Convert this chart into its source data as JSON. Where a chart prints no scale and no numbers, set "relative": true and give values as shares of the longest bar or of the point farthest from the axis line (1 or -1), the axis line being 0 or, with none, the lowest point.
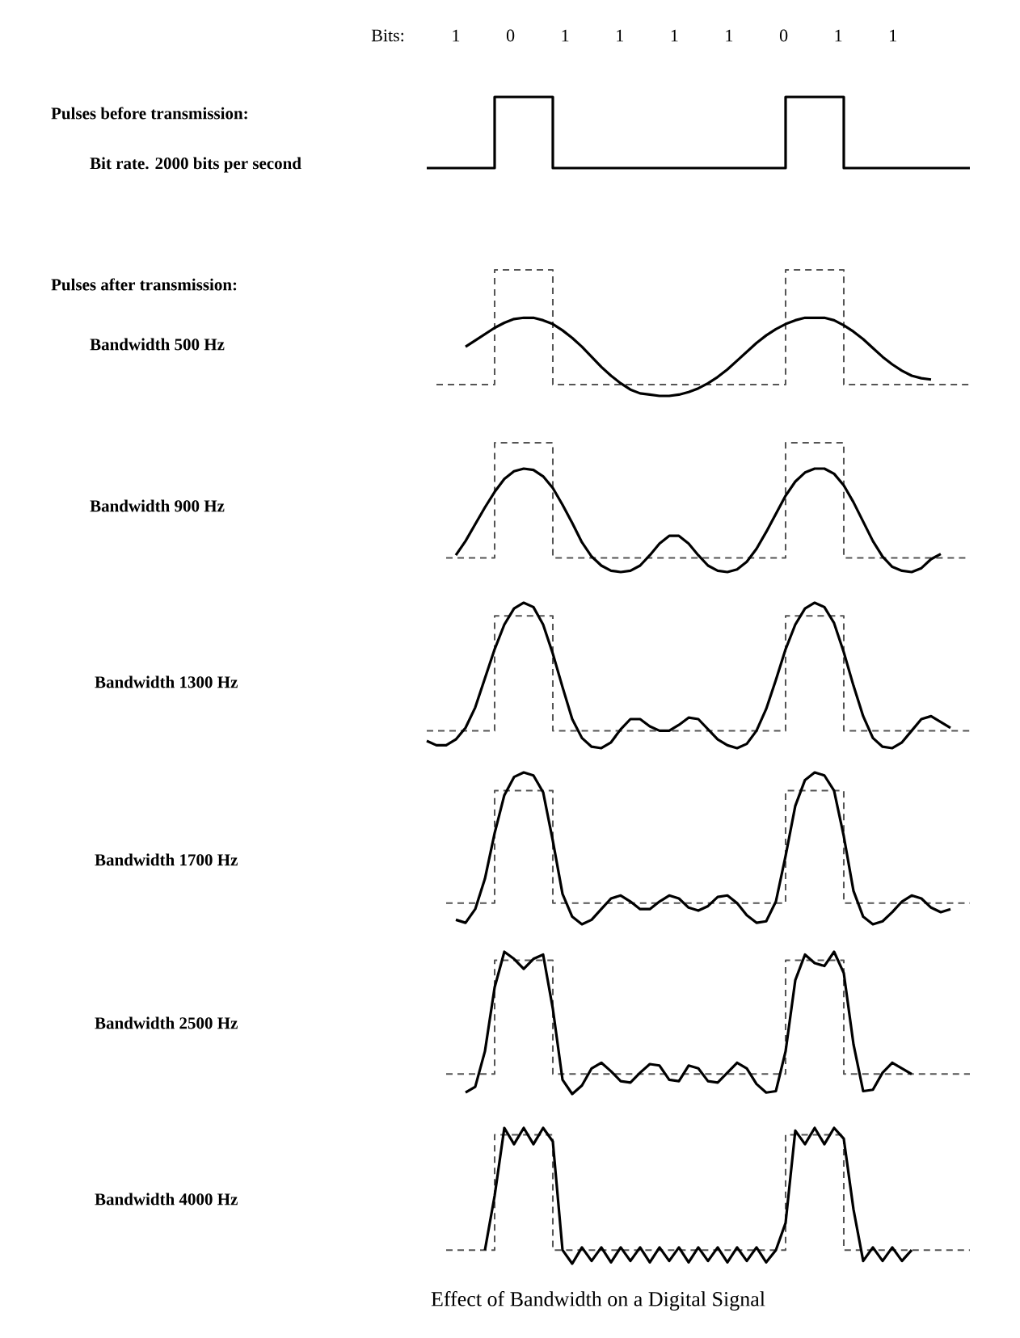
{
  "chart_data": [
    {
      "type": "step",
      "ylabel": "Bit rate. 2000 bits per second",
      "xlabel": "Bits:",
      "annotations": [
        "1",
        "0",
        "1",
        "1",
        "1",
        "1",
        "0",
        "1",
        "1",
        "Pulses before transmission:"
      ],
      "categories": [
        null,
        null,
        null,
        null,
        null,
        null,
        null,
        null,
        null,
        null,
        null,
        null,
        null,
        null,
        null,
        null,
        null,
        null,
        null,
        null,
        null,
        null,
        null,
        null,
        null,
        null,
        null,
        null,
        null,
        null,
        null,
        null,
        null,
        null,
        null,
        null,
        null,
        null,
        null,
        null,
        null,
        null,
        null,
        null,
        null,
        null,
        null,
        null,
        null,
        null,
        null,
        null,
        null,
        null,
        null,
        null,
        null,
        null
      ],
      "relative": true,
      "color": "#000000",
      "values": [
        null,
        0,
        0,
        0,
        0,
        0,
        0,
        0,
        1,
        1,
        1,
        1,
        1,
        1,
        0,
        0,
        0,
        0,
        0,
        0,
        0,
        0,
        0,
        0,
        0,
        0,
        0,
        0,
        0,
        0,
        0,
        0,
        0,
        0,
        0,
        0,
        0,
        0,
        1,
        1,
        1,
        1,
        1,
        1,
        0,
        0,
        0,
        0,
        0,
        0,
        0,
        0,
        0,
        0,
        0,
        0,
        0,
        0
      ]
    },
    {
      "type": "line",
      "annotations": [
        "Pulses after transmission:"
      ],
      "ylabel": "Bandwidth 500 Hz",
      "relative": true,
      "categories": [
        null,
        null,
        null,
        null,
        null,
        null,
        null,
        null,
        null,
        null,
        null,
        null,
        null,
        null,
        null,
        null,
        null,
        null,
        null,
        null,
        null,
        null,
        null,
        null,
        null,
        null,
        null,
        null,
        null,
        null,
        null,
        null,
        null,
        null,
        null,
        null,
        null,
        null,
        null,
        null,
        null,
        null,
        null,
        null,
        null,
        null,
        null,
        null,
        null,
        null,
        null,
        null,
        null,
        null,
        null,
        null,
        null,
        null
      ],
      "series": [
        {
          "type": "step",
          "line_style": "dashed",
          "color": "#555555",
          "values": [
            null,
            null,
            0.09,
            0.09,
            0.09,
            0.09,
            0.09,
            0.09,
            1,
            1,
            1,
            1,
            1,
            1,
            0.09,
            0.09,
            0.09,
            0.09,
            0.09,
            0.09,
            0.09,
            0.09,
            0.09,
            0.09,
            0.09,
            0.09,
            0.09,
            0.09,
            0.09,
            0.09,
            0.09,
            0.09,
            0.09,
            0.09,
            0.09,
            0.09,
            0.09,
            0.09,
            1,
            1,
            1,
            1,
            1,
            1,
            0.09,
            0.09,
            0.09,
            0.09,
            0.09,
            0.09,
            0.09,
            0.09,
            0.09,
            0.09,
            0.09,
            0.09,
            0.09,
            0.09
          ]
        },
        {
          "type": "line",
          "line_style": "solid",
          "color": "#000000",
          "values": [
            null,
            null,
            null,
            null,
            null,
            0.39,
            0.44,
            0.49,
            0.54,
            0.58,
            0.61,
            0.62,
            0.62,
            0.6,
            0.57,
            0.52,
            0.46,
            0.39,
            0.31,
            0.23,
            0.16,
            0.1,
            0.05,
            0.02,
            0.01,
            0,
            0,
            0.01,
            0.03,
            0.06,
            0.1,
            0.15,
            0.21,
            0.28,
            0.35,
            0.42,
            0.48,
            0.53,
            0.57,
            0.6,
            0.62,
            0.62,
            0.62,
            0.6,
            0.56,
            0.51,
            0.45,
            0.38,
            0.31,
            0.25,
            0.2,
            0.16,
            0.14,
            0.13,
            null,
            null,
            null,
            null
          ]
        }
      ]
    },
    {
      "type": "line",
      "ylabel": "Bandwidth 900 Hz",
      "relative": true,
      "categories": [
        null,
        null,
        null,
        null,
        null,
        null,
        null,
        null,
        null,
        null,
        null,
        null,
        null,
        null,
        null,
        null,
        null,
        null,
        null,
        null,
        null,
        null,
        null,
        null,
        null,
        null,
        null,
        null,
        null,
        null,
        null,
        null,
        null,
        null,
        null,
        null,
        null,
        null,
        null,
        null,
        null,
        null,
        null,
        null,
        null,
        null,
        null,
        null,
        null,
        null,
        null,
        null,
        null,
        null,
        null,
        null,
        null,
        null
      ],
      "series": [
        {
          "type": "step",
          "line_style": "dashed",
          "color": "#555555",
          "values": [
            null,
            null,
            null,
            0.11,
            0.11,
            0.11,
            0.11,
            0.11,
            1,
            1,
            1,
            1,
            1,
            1,
            0.11,
            0.11,
            0.11,
            0.11,
            0.11,
            0.11,
            0.11,
            0.11,
            0.11,
            0.11,
            0.11,
            0.11,
            0.11,
            0.11,
            0.11,
            0.11,
            0.11,
            0.11,
            0.11,
            0.11,
            0.11,
            0.11,
            0.11,
            0.11,
            1,
            1,
            1,
            1,
            1,
            1,
            0.11,
            0.11,
            0.11,
            0.11,
            0.11,
            0.11,
            0.11,
            0.11,
            0.11,
            0.11,
            0.11,
            0.11,
            0.11,
            0.11
          ]
        },
        {
          "type": "line",
          "line_style": "solid",
          "color": "#000000",
          "values": [
            null,
            null,
            null,
            null,
            0.13,
            0.24,
            0.37,
            0.5,
            0.62,
            0.72,
            0.78,
            0.8,
            0.79,
            0.74,
            0.65,
            0.52,
            0.38,
            0.23,
            0.12,
            0.05,
            0.01,
            0,
            0.01,
            0.05,
            0.13,
            0.22,
            0.28,
            0.28,
            0.22,
            0.13,
            0.05,
            0.01,
            0,
            0.02,
            0.08,
            0.18,
            0.31,
            0.45,
            0.59,
            0.7,
            0.77,
            0.8,
            0.8,
            0.76,
            0.67,
            0.54,
            0.39,
            0.24,
            0.12,
            0.04,
            0.01,
            0,
            0.03,
            0.1,
            0.14,
            null,
            null,
            null
          ]
        }
      ]
    },
    {
      "type": "line",
      "ylabel": "Bandwidth 1300 Hz",
      "relative": true,
      "categories": [
        null,
        null,
        null,
        null,
        null,
        null,
        null,
        null,
        null,
        null,
        null,
        null,
        null,
        null,
        null,
        null,
        null,
        null,
        null,
        null,
        null,
        null,
        null,
        null,
        null,
        null,
        null,
        null,
        null,
        null,
        null,
        null,
        null,
        null,
        null,
        null,
        null,
        null,
        null,
        null,
        null,
        null,
        null,
        null,
        null,
        null,
        null,
        null,
        null,
        null,
        null,
        null,
        null,
        null,
        null,
        null,
        null,
        null
      ],
      "series": [
        {
          "type": "step",
          "line_style": "dashed",
          "color": "#555555",
          "values": [
            null,
            0.12,
            0.12,
            0.12,
            0.12,
            0.12,
            0.12,
            0.12,
            0.91,
            0.91,
            0.91,
            0.91,
            0.91,
            0.91,
            0.12,
            0.12,
            0.12,
            0.12,
            0.12,
            0.12,
            0.12,
            0.12,
            0.12,
            0.12,
            0.12,
            0.12,
            0.12,
            0.12,
            0.12,
            0.12,
            0.12,
            0.12,
            0.12,
            0.12,
            0.12,
            0.12,
            0.12,
            0.12,
            0.91,
            0.91,
            0.91,
            0.91,
            0.91,
            0.91,
            0.12,
            0.12,
            0.12,
            0.12,
            0.12,
            0.12,
            0.12,
            0.12,
            0.12,
            0.12,
            0.12,
            0.12,
            0.12,
            0.12
          ]
        },
        {
          "type": "line",
          "line_style": "solid",
          "color": "#000000",
          "values": [
            null,
            0.05,
            0.02,
            0.02,
            0.06,
            0.14,
            0.28,
            0.48,
            0.68,
            0.85,
            0.96,
            1,
            0.97,
            0.85,
            0.65,
            0.42,
            0.2,
            0.07,
            0.01,
            0,
            0.04,
            0.13,
            0.2,
            0.2,
            0.15,
            0.12,
            0.12,
            0.16,
            0.21,
            0.2,
            0.13,
            0.06,
            0.02,
            0,
            0.03,
            0.12,
            0.27,
            0.47,
            0.68,
            0.85,
            0.96,
            1,
            0.97,
            0.86,
            0.66,
            0.43,
            0.22,
            0.07,
            0.01,
            0,
            0.04,
            0.12,
            0.2,
            0.22,
            0.18,
            0.14,
            null,
            null
          ]
        }
      ]
    },
    {
      "type": "line",
      "ylabel": "Bandwidth 1700 Hz",
      "relative": true,
      "categories": [
        null,
        null,
        null,
        null,
        null,
        null,
        null,
        null,
        null,
        null,
        null,
        null,
        null,
        null,
        null,
        null,
        null,
        null,
        null,
        null,
        null,
        null,
        null,
        null,
        null,
        null,
        null,
        null,
        null,
        null,
        null,
        null,
        null,
        null,
        null,
        null,
        null,
        null,
        null,
        null,
        null,
        null,
        null,
        null,
        null,
        null,
        null,
        null,
        null,
        null,
        null,
        null,
        null,
        null,
        null,
        null,
        null,
        null
      ],
      "series": [
        {
          "type": "step",
          "line_style": "dashed",
          "color": "#555555",
          "values": [
            null,
            null,
            null,
            0.14,
            0.14,
            0.14,
            0.14,
            0.14,
            0.88,
            0.88,
            0.88,
            0.88,
            0.88,
            0.88,
            0.14,
            0.14,
            0.14,
            0.14,
            0.14,
            0.14,
            0.14,
            0.14,
            0.14,
            0.14,
            0.14,
            0.14,
            0.14,
            0.14,
            0.14,
            0.14,
            0.14,
            0.14,
            0.14,
            0.14,
            0.14,
            0.14,
            0.14,
            0.14,
            0.88,
            0.88,
            0.88,
            0.88,
            0.88,
            0.88,
            0.14,
            0.14,
            0.14,
            0.14,
            0.14,
            0.14,
            0.14,
            0.14,
            0.14,
            0.14,
            0.14,
            0.14,
            0.14,
            0.14
          ]
        },
        {
          "type": "line",
          "line_style": "solid",
          "color": "#000000",
          "values": [
            null,
            null,
            null,
            null,
            0.03,
            0.01,
            0.1,
            0.3,
            0.6,
            0.85,
            0.97,
            1,
            0.98,
            0.87,
            0.55,
            0.2,
            0.05,
            0,
            0.03,
            0.1,
            0.17,
            0.19,
            0.15,
            0.1,
            0.1,
            0.15,
            0.19,
            0.17,
            0.11,
            0.09,
            0.12,
            0.18,
            0.19,
            0.14,
            0.06,
            0.01,
            0.02,
            0.15,
            0.45,
            0.78,
            0.95,
            1,
            0.98,
            0.88,
            0.58,
            0.22,
            0.05,
            0,
            0.02,
            0.08,
            0.15,
            0.19,
            0.17,
            0.11,
            0.08,
            0.1,
            null,
            null
          ]
        }
      ]
    },
    {
      "type": "line",
      "ylabel": "Bandwidth 2500 Hz",
      "relative": true,
      "categories": [
        null,
        null,
        null,
        null,
        null,
        null,
        null,
        null,
        null,
        null,
        null,
        null,
        null,
        null,
        null,
        null,
        null,
        null,
        null,
        null,
        null,
        null,
        null,
        null,
        null,
        null,
        null,
        null,
        null,
        null,
        null,
        null,
        null,
        null,
        null,
        null,
        null,
        null,
        null,
        null,
        null,
        null,
        null,
        null,
        null,
        null,
        null,
        null,
        null,
        null,
        null,
        null,
        null,
        null,
        null,
        null,
        null,
        null
      ],
      "series": [
        {
          "type": "step",
          "line_style": "dashed",
          "color": "#555555",
          "values": [
            null,
            null,
            null,
            0.14,
            0.14,
            0.14,
            0.14,
            0.14,
            0.94,
            0.94,
            0.94,
            0.94,
            0.94,
            0.94,
            0.14,
            0.14,
            0.14,
            0.14,
            0.14,
            0.14,
            0.14,
            0.14,
            0.14,
            0.14,
            0.14,
            0.14,
            0.14,
            0.14,
            0.14,
            0.14,
            0.14,
            0.14,
            0.14,
            0.14,
            0.14,
            0.14,
            0.14,
            0.14,
            0.94,
            0.94,
            0.94,
            0.94,
            0.94,
            0.94,
            0.14,
            0.14,
            0.14,
            0.14,
            0.14,
            0.14,
            0.14,
            0.14,
            0.14,
            0.14,
            0.14,
            0.14,
            0.14,
            0.14
          ]
        },
        {
          "type": "line",
          "line_style": "solid",
          "color": "#000000",
          "values": [
            null,
            null,
            null,
            null,
            null,
            0.01,
            0.05,
            0.3,
            0.75,
            1,
            0.95,
            0.88,
            0.95,
            0.98,
            0.6,
            0.1,
            0,
            0.06,
            0.18,
            0.22,
            0.16,
            0.09,
            0.08,
            0.15,
            0.21,
            0.2,
            0.1,
            0.09,
            0.2,
            0.18,
            0.09,
            0.08,
            0.15,
            0.22,
            0.18,
            0.07,
            0.01,
            0.02,
            0.3,
            0.8,
            0.98,
            0.92,
            0.9,
            1,
            0.85,
            0.35,
            0.02,
            0.03,
            0.15,
            0.22,
            0.18,
            0.14,
            null,
            null,
            null,
            null,
            null,
            null
          ]
        }
      ]
    },
    {
      "type": "line",
      "ylabel": "Bandwidth 4000 Hz",
      "relative": true,
      "annotations": [
        "Effect of Bandwidth on a Digital Signal"
      ],
      "categories": [
        null,
        null,
        null,
        null,
        null,
        null,
        null,
        null,
        null,
        null,
        null,
        null,
        null,
        null,
        null,
        null,
        null,
        null,
        null,
        null,
        null,
        null,
        null,
        null,
        null,
        null,
        null,
        null,
        null,
        null,
        null,
        null,
        null,
        null,
        null,
        null,
        null,
        null,
        null,
        null,
        null,
        null,
        null,
        null,
        null,
        null,
        null,
        null,
        null,
        null,
        null,
        null,
        null,
        null,
        null,
        null,
        null,
        null
      ],
      "series": [
        {
          "type": "step",
          "line_style": "dashed",
          "color": "#555555",
          "values": [
            null,
            null,
            null,
            0.1,
            0.1,
            0.1,
            0.1,
            0.1,
            0.95,
            0.95,
            0.95,
            0.95,
            0.95,
            0.95,
            0.1,
            0.1,
            0.1,
            0.1,
            0.1,
            0.1,
            0.1,
            0.1,
            0.1,
            0.1,
            0.1,
            0.1,
            0.1,
            0.1,
            0.1,
            0.1,
            0.1,
            0.1,
            0.1,
            0.1,
            0.1,
            0.1,
            0.1,
            0.1,
            0.95,
            0.95,
            0.95,
            0.95,
            0.95,
            0.95,
            0.1,
            0.1,
            0.1,
            0.1,
            0.1,
            0.1,
            0.1,
            0.1,
            0.1,
            0.1,
            0.1,
            0.1,
            0.1,
            0.1
          ]
        },
        {
          "type": "line",
          "line_style": "solid",
          "color": "#000000",
          "values": [
            null,
            null,
            null,
            null,
            null,
            null,
            null,
            0.1,
            0.5,
            1,
            0.88,
            1,
            0.88,
            1,
            0.9,
            0.1,
            0,
            0.12,
            0.02,
            0.12,
            0.01,
            0.12,
            0.02,
            0.12,
            0.01,
            0.12,
            0.02,
            0.12,
            0.01,
            0.12,
            0.02,
            0.12,
            0.01,
            0.12,
            0.02,
            0.12,
            0.01,
            0.1,
            0.3,
            0.98,
            0.88,
            1,
            0.88,
            1,
            0.92,
            0.4,
            0.02,
            0.12,
            0.02,
            0.12,
            0.02,
            0.1,
            null,
            null,
            null,
            null,
            null,
            null
          ]
        }
      ]
    }
  ]
}
